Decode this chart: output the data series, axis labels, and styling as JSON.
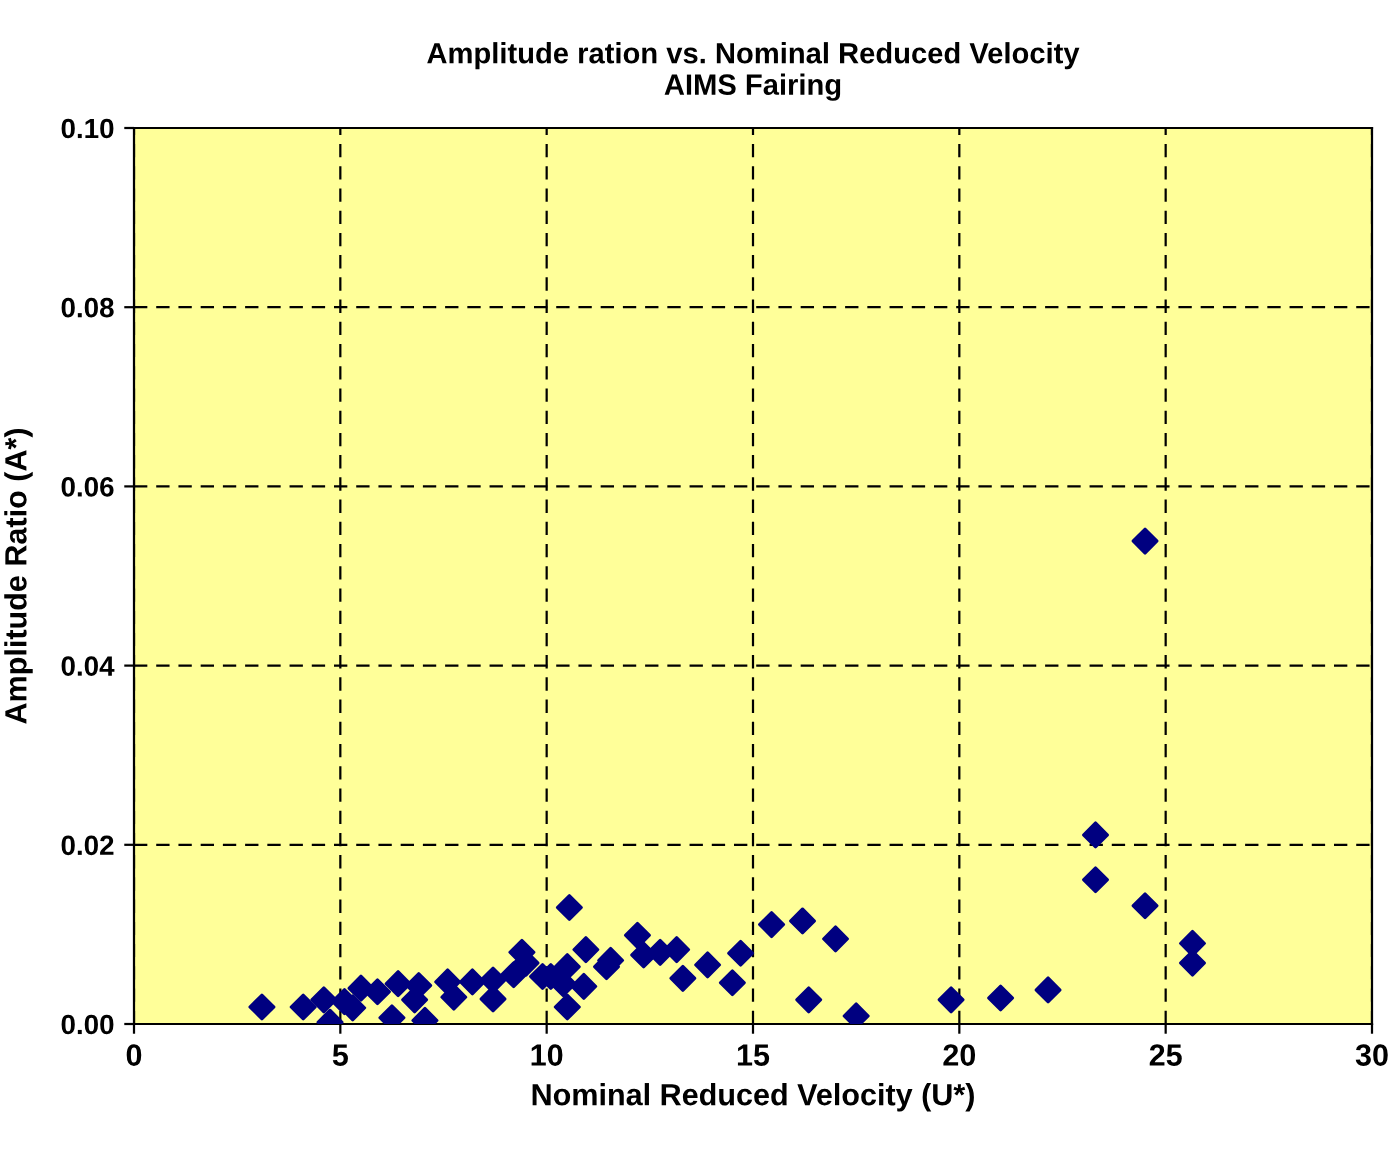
{
  "chart_data": {
    "type": "scatter",
    "title": "Amplitude ration vs. Nominal Reduced Velocity\nAIMS Fairing",
    "xlabel": "Nominal Reduced Velocity (U*)",
    "ylabel": "Amplitude Ratio (A*)",
    "x": [
      3.1,
      4.1,
      4.6,
      4.75,
      5.1,
      5.3,
      5.5,
      5.9,
      6.25,
      6.4,
      6.9,
      6.8,
      7.05,
      7.6,
      7.75,
      8.2,
      8.7,
      8.7,
      9.2,
      9.4,
      9.5,
      9.9,
      10.1,
      10.55,
      10.5,
      10.5,
      10.95,
      10.9,
      10.4,
      11.45,
      11.55,
      12.2,
      12.35,
      12.75,
      13.15,
      13.3,
      13.9,
      14.5,
      14.7,
      15.45,
      16.2,
      16.35,
      17.0,
      17.5,
      19.8,
      21.0,
      22.15,
      23.3,
      23.3,
      24.5,
      24.5,
      25.65,
      25.65
    ],
    "series": [
      {
        "color": "#000080",
        "values": [
          0.0019,
          0.0019,
          0.0027,
          0.0002,
          0.0025,
          0.0018,
          0.004,
          0.0036,
          0.0007,
          0.0045,
          0.0043,
          0.0027,
          0.0004,
          0.0047,
          0.003,
          0.0047,
          0.0049,
          0.0028,
          0.0055,
          0.008,
          0.0068,
          0.0053,
          0.0053,
          0.013,
          0.0064,
          0.0019,
          0.0083,
          0.0042,
          0.0045,
          0.0064,
          0.0071,
          0.0099,
          0.0077,
          0.008,
          0.0083,
          0.0051,
          0.0066,
          0.0046,
          0.0079,
          0.0111,
          0.0115,
          0.0027,
          0.0095,
          0.0009,
          0.0027,
          0.0029,
          0.0038,
          0.0211,
          0.0161,
          0.0539,
          0.0132,
          0.009,
          0.0068
        ]
      }
    ],
    "xlim": [
      0,
      30
    ],
    "xticks": [
      0,
      5,
      10,
      15,
      20,
      25,
      30
    ],
    "ylim": [
      0,
      0.1
    ],
    "yticks": [
      {
        "value": 0,
        "label": "0.00"
      },
      {
        "value": 0.02,
        "label": "0.02"
      },
      {
        "value": 0.04,
        "label": "0.04"
      },
      {
        "value": 0.06,
        "label": "0.06"
      },
      {
        "value": 0.08,
        "label": "0.08"
      },
      {
        "value": 0.1,
        "label": "0.10"
      }
    ],
    "grid": true,
    "marker": "diamond"
  }
}
